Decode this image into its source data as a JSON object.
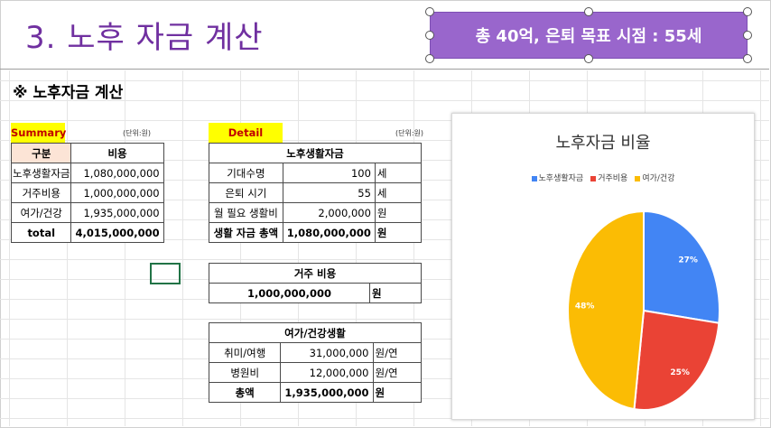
{
  "slide": {
    "title": "3. 노후 자금 계산"
  },
  "callout": {
    "text": "총 40억, 은퇴 목표 시점  : 55세",
    "color": "#9966cc"
  },
  "sheet": {
    "heading": "※ 노후자금 계산",
    "summary": {
      "tag": "Summary",
      "unit": "(단위:원)",
      "headers": {
        "category": "구분",
        "cost": "비용"
      },
      "rows": [
        {
          "label": "노후생활자금",
          "value": "1,080,000,000"
        },
        {
          "label": "거주비용",
          "value": "1,000,000,000"
        },
        {
          "label": "여가/건강",
          "value": "1,935,000,000"
        }
      ],
      "total": {
        "label": "total",
        "value": "4,015,000,000"
      }
    },
    "detail": {
      "tag": "Detail",
      "unit": "(단위:원)",
      "living": {
        "title": "노후생활자금",
        "rows": [
          {
            "label": "기대수명",
            "value": "100",
            "unit": "세"
          },
          {
            "label": "은퇴 시기",
            "value": "55",
            "unit": "세"
          },
          {
            "label": "월 필요 생활비",
            "value": "2,000,000",
            "unit": "원"
          }
        ],
        "total": {
          "label": "생활 자금 총액",
          "value": "1,080,000,000",
          "unit": "원"
        }
      },
      "housing": {
        "title": "거주 비용",
        "value": "1,000,000,000",
        "unit": "원"
      },
      "leisure": {
        "title": "여가/건강생활",
        "rows": [
          {
            "label": "취미/여행",
            "value": "31,000,000",
            "unit": "원/연"
          },
          {
            "label": "병원비",
            "value": "12,000,000",
            "unit": "원/연"
          }
        ],
        "total": {
          "label": "총액",
          "value": "1,935,000,000",
          "unit": "원"
        }
      }
    }
  },
  "chart_data": {
    "type": "pie",
    "title": "노후자금 비율",
    "categories": [
      "노후생활자금",
      "거주비용",
      "여가/건강"
    ],
    "values": [
      27,
      25,
      48
    ],
    "labels": [
      "27%",
      "25%",
      "48%"
    ],
    "colors": [
      "#4285f4",
      "#ea4335",
      "#fbbc04"
    ],
    "legend_position": "top"
  }
}
